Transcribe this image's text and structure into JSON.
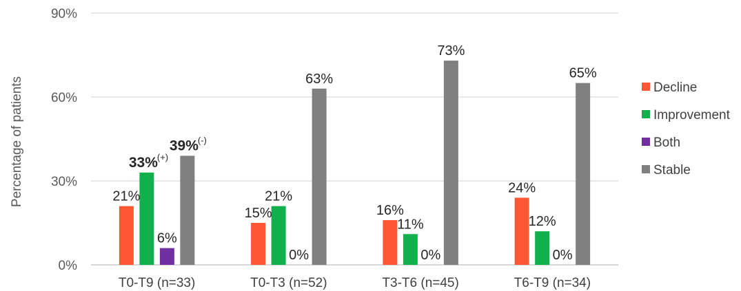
{
  "chart_data": {
    "type": "bar",
    "ylabel": "Percentage of patients",
    "ylim": [
      0,
      90
    ],
    "yticks": [
      0,
      30,
      60,
      90
    ],
    "ytick_labels": [
      "0%",
      "30%",
      "60%",
      "90%"
    ],
    "grid": true,
    "legend_position": "right",
    "categories": [
      "T0-T9 (n=33)",
      "T0-T3 (n=52)",
      "T3-T6 (n=45)",
      "T6-T9 (n=34)"
    ],
    "series": [
      {
        "name": "Decline",
        "color": "#ff5733",
        "values": [
          21,
          15,
          16,
          24
        ],
        "labels": [
          "21%",
          "15%",
          "16%",
          "24%"
        ]
      },
      {
        "name": "Improvement",
        "color": "#12b04c",
        "values": [
          33,
          21,
          11,
          12
        ],
        "labels": [
          "33%",
          "21%",
          "11%",
          "12%"
        ]
      },
      {
        "name": "Both",
        "color": "#7030a0",
        "values": [
          6,
          0,
          0,
          0
        ],
        "labels": [
          "6%",
          "0%",
          "0%",
          "0%"
        ]
      },
      {
        "name": "Stable",
        "color": "#808080",
        "values": [
          39,
          63,
          73,
          65
        ],
        "labels": [
          "39%",
          "63%",
          "73%",
          "65%"
        ]
      }
    ],
    "annotations": [
      {
        "series": "Improvement",
        "category": "T0-T9 (n=33)",
        "label_bold": true,
        "superscript": "(+)"
      },
      {
        "series": "Stable",
        "category": "T0-T9 (n=33)",
        "label_bold": true,
        "superscript": "(-)"
      }
    ]
  }
}
